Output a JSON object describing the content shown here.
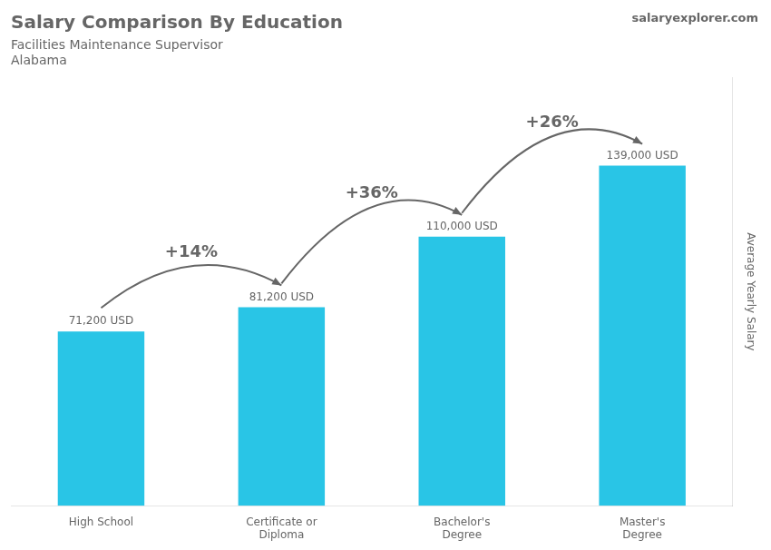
{
  "chart_data": {
    "type": "bar",
    "title": "Salary Comparison By Education",
    "subtitle": [
      "Facilities Maintenance Supervisor",
      "Alabama"
    ],
    "categories": [
      "High School",
      "Certificate or\nDiploma",
      "Bachelor's\nDegree",
      "Master's\nDegree"
    ],
    "values": [
      71200,
      81200,
      110000,
      139000
    ],
    "value_labels": [
      "71,200 USD",
      "81,200 USD",
      "110,000 USD",
      "139,000 USD"
    ],
    "data_labels": true,
    "color": "#29c5e6",
    "ylabel": "Average Yearly Salary",
    "ylim": [
      0,
      175000
    ],
    "tick_labels": "x",
    "grid": false,
    "annotations": [
      {
        "text": "+14%",
        "from": "High School",
        "to": "Certificate or\nDiploma"
      },
      {
        "text": "+36%",
        "from": "Certificate or\nDiploma",
        "to": "Bachelor's\nDegree"
      },
      {
        "text": "+26%",
        "from": "Bachelor's\nDegree",
        "to": "Master's\nDegree"
      },
      {
        "text": "salaryexplorer.com"
      }
    ]
  }
}
